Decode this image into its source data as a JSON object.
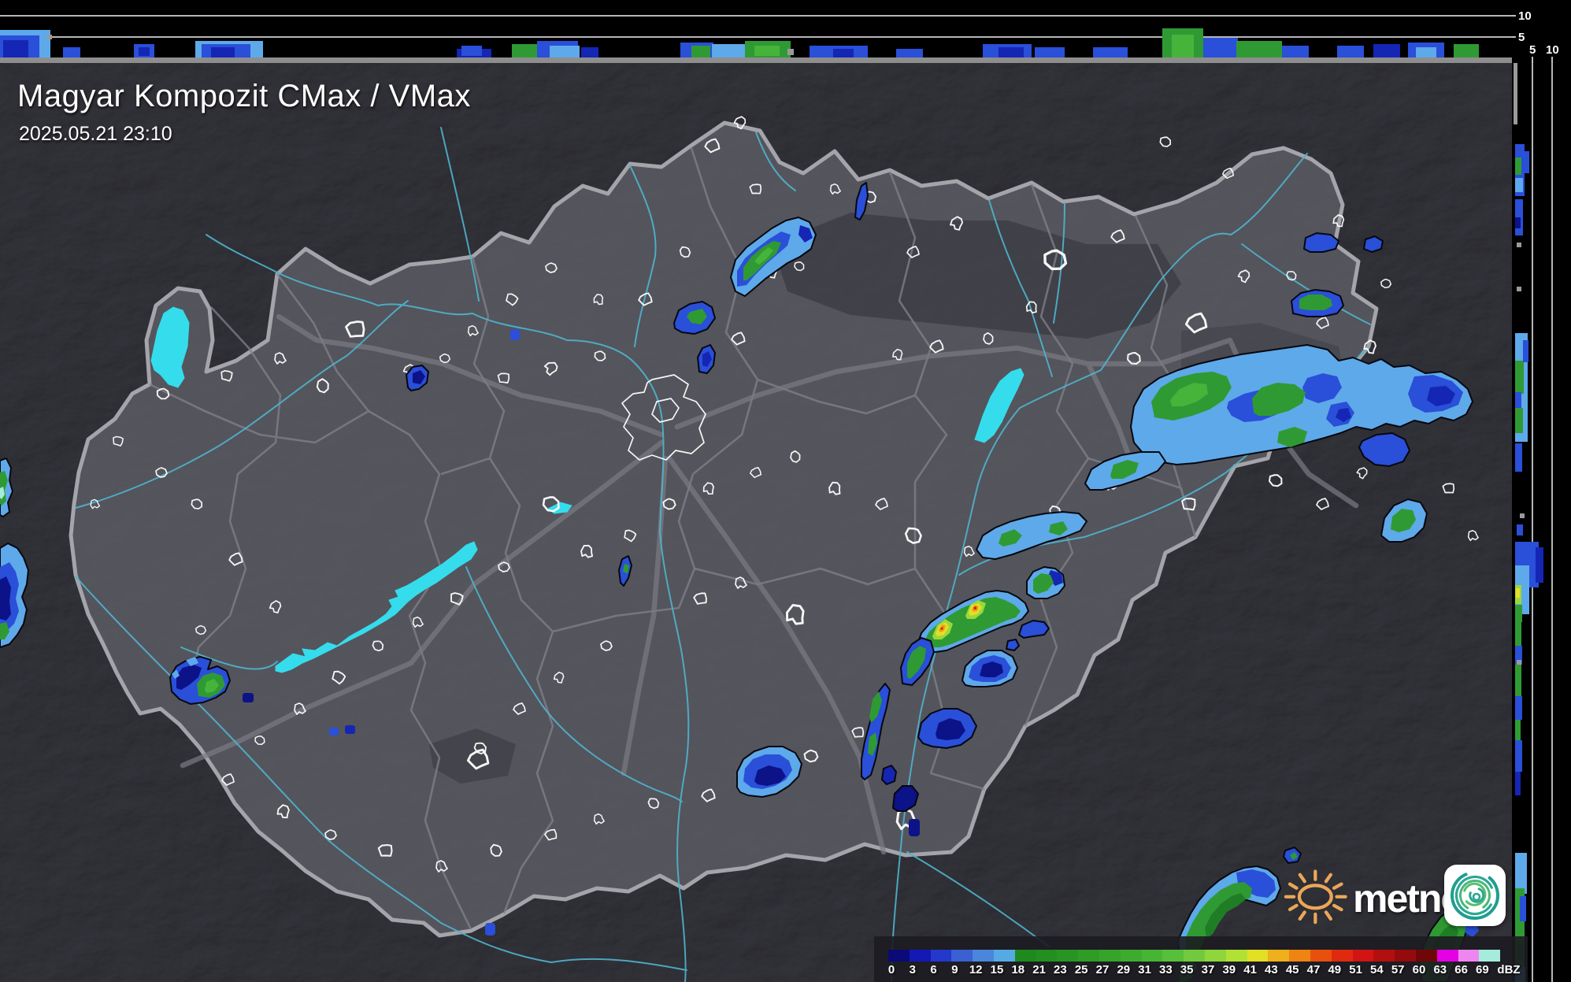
{
  "header": {
    "title": "Magyar Kompozit CMax / VMax",
    "timestamp": "2025.05.21 23:10"
  },
  "profile_axes": {
    "top_ticks": [
      "10",
      "5"
    ],
    "right_ticks": [
      "5",
      "10"
    ]
  },
  "legend": {
    "unit": "dBZ",
    "stops": [
      {
        "label": "0",
        "color": "#0a0a78"
      },
      {
        "label": "3",
        "color": "#1418b4"
      },
      {
        "label": "6",
        "color": "#2438cc"
      },
      {
        "label": "9",
        "color": "#3a60d4"
      },
      {
        "label": "12",
        "color": "#4a86dc"
      },
      {
        "label": "15",
        "color": "#55aae4"
      },
      {
        "label": "18",
        "color": "#1e8a1e"
      },
      {
        "label": "21",
        "color": "#238f21"
      },
      {
        "label": "23",
        "color": "#289522"
      },
      {
        "label": "25",
        "color": "#2e9c25"
      },
      {
        "label": "27",
        "color": "#35a429"
      },
      {
        "label": "29",
        "color": "#3dac2e"
      },
      {
        "label": "31",
        "color": "#47b534"
      },
      {
        "label": "33",
        "color": "#58bf3a"
      },
      {
        "label": "35",
        "color": "#71ca3e"
      },
      {
        "label": "37",
        "color": "#8ed63c"
      },
      {
        "label": "39",
        "color": "#b0e134"
      },
      {
        "label": "41",
        "color": "#e2df25"
      },
      {
        "label": "43",
        "color": "#eeb01c"
      },
      {
        "label": "45",
        "color": "#ee8412"
      },
      {
        "label": "47",
        "color": "#e9500e"
      },
      {
        "label": "49",
        "color": "#e02a10"
      },
      {
        "label": "51",
        "color": "#d11414"
      },
      {
        "label": "54",
        "color": "#b30f10"
      },
      {
        "label": "57",
        "color": "#930b0c"
      },
      {
        "label": "60",
        "color": "#6f0708"
      },
      {
        "label": "63",
        "color": "#e402e4"
      },
      {
        "label": "66",
        "color": "#ef86ef"
      },
      {
        "label": "69",
        "color": "#a5ecdc"
      }
    ]
  },
  "branding": {
    "wordmark": "metnet"
  }
}
